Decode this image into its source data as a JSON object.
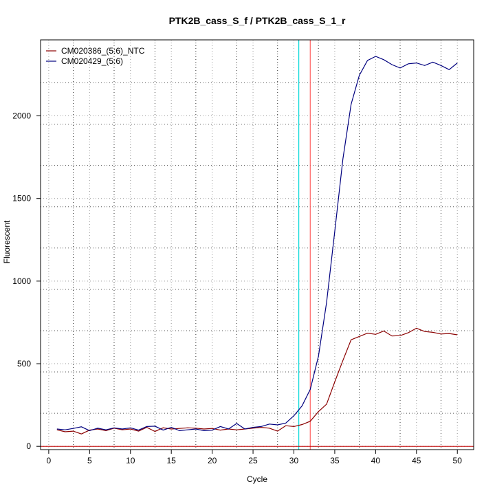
{
  "chart_data": {
    "type": "line",
    "title": "PTK2B_cass_S_f / PTK2B_cass_S_1_r",
    "xlabel": "Cycle",
    "ylabel": "Fluorescent",
    "xlim": [
      -1,
      52
    ],
    "ylim": [
      -20,
      2460
    ],
    "x_ticks": [
      0,
      5,
      10,
      15,
      20,
      25,
      30,
      35,
      40,
      45,
      50
    ],
    "y_ticks": [
      0,
      500,
      1000,
      1500,
      2000
    ],
    "x_minor_grid": [
      3,
      8,
      13,
      18,
      23,
      28,
      33,
      38,
      43,
      48
    ],
    "y_minor_grid": [
      200,
      450,
      700,
      950,
      1200,
      1450,
      1700,
      1950,
      2200
    ],
    "grid": true,
    "legend_position": "top-left",
    "threshold_lines": [
      {
        "x": 30.6,
        "color": "#00d8d8"
      },
      {
        "x": 32.0,
        "color": "#ff6060"
      }
    ],
    "baseline": {
      "y": 0,
      "color": "#c00000"
    },
    "x": [
      1,
      2,
      3,
      4,
      5,
      6,
      7,
      8,
      9,
      10,
      11,
      12,
      13,
      14,
      15,
      16,
      17,
      18,
      19,
      20,
      21,
      22,
      23,
      24,
      25,
      26,
      27,
      28,
      29,
      30,
      31,
      32,
      33,
      34,
      35,
      36,
      37,
      38,
      39,
      40,
      41,
      42,
      43,
      44,
      45,
      46,
      47,
      48,
      49,
      50
    ],
    "series": [
      {
        "name": "CM020386_(5:6)_NTC",
        "color": "#8b0000",
        "values": [
          100,
          88,
          92,
          75,
          98,
          105,
          95,
          110,
          100,
          105,
          92,
          115,
          90,
          112,
          105,
          108,
          112,
          110,
          105,
          108,
          98,
          105,
          100,
          105,
          110,
          115,
          110,
          92,
          125,
          120,
          132,
          152,
          210,
          255,
          390,
          520,
          645,
          665,
          685,
          678,
          698,
          668,
          670,
          688,
          715,
          695,
          690,
          680,
          683,
          675
        ]
      },
      {
        "name": "CM020429_(5:6)",
        "color": "#00007f",
        "values": [
          105,
          100,
          108,
          118,
          95,
          110,
          100,
          112,
          105,
          112,
          98,
          120,
          122,
          98,
          115,
          95,
          100,
          105,
          95,
          98,
          120,
          105,
          138,
          105,
          115,
          120,
          135,
          130,
          140,
          185,
          245,
          345,
          545,
          870,
          1300,
          1740,
          2070,
          2245,
          2335,
          2360,
          2340,
          2310,
          2290,
          2315,
          2320,
          2305,
          2325,
          2305,
          2280,
          2320
        ]
      }
    ]
  }
}
